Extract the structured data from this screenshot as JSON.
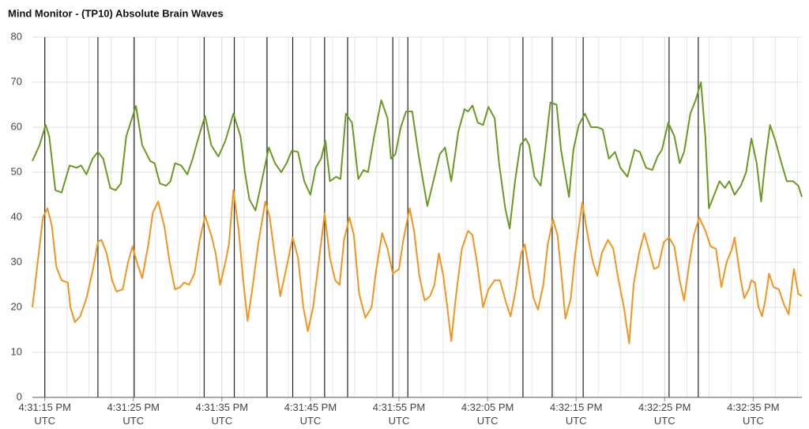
{
  "chart_data": {
    "type": "line",
    "title": "Mind Monitor - (TP10) Absolute Brain Waves",
    "xlim": [
      59473.6,
      59560.5
    ],
    "ylim": [
      0,
      80
    ],
    "yticks": [
      0,
      10,
      20,
      30,
      40,
      50,
      60,
      70,
      80
    ],
    "xticks": [
      {
        "value": 59475,
        "label": "4:31:15 PM UTC"
      },
      {
        "value": 59485,
        "label": "4:31:25 PM UTC"
      },
      {
        "value": 59495,
        "label": "4:31:35 PM UTC"
      },
      {
        "value": 59505,
        "label": "4:31:45 PM UTC"
      },
      {
        "value": 59515,
        "label": "4:31:55 PM UTC"
      },
      {
        "value": 59525,
        "label": "4:32:05 PM UTC"
      },
      {
        "value": 59535,
        "label": "4:32:15 PM UTC"
      },
      {
        "value": 59545,
        "label": "4:32:25 PM UTC"
      },
      {
        "value": 59555,
        "label": "4:32:35 PM UTC"
      }
    ],
    "xminorticks": [
      59477.5,
      59480,
      59482.5,
      59487.5,
      59490,
      59492.5,
      59497.5,
      59500,
      59502.5,
      59507.5,
      59510,
      59512.5,
      59517.5,
      59520,
      59522.5,
      59527.5,
      59530,
      59532.5,
      59537.5,
      59540,
      59542.5,
      59547.5,
      59550,
      59552.5,
      59557.5,
      59560
    ],
    "grid": true,
    "markers": [
      59475.0,
      59481.0,
      59485.1,
      59493.0,
      59496.4,
      59500.1,
      59503.0,
      59506.6,
      59509.2,
      59514.3,
      59516.0,
      59529.0,
      59532.3,
      59535.8,
      59545.5,
      59548.8
    ],
    "series": [
      {
        "color": "#6a9a23",
        "x": [
          59473.6,
          59474.4,
          59475.1,
          59475.5,
          59476.2,
          59476.9,
          59477.8,
          59478.6,
          59479.1,
          59479.7,
          59480.4,
          59481.0,
          59481.6,
          59482.4,
          59483.0,
          59483.6,
          59484.2,
          59485.3,
          59486.0,
          59486.9,
          59487.4,
          59488.0,
          59488.7,
          59489.2,
          59489.7,
          59490.4,
          59491.1,
          59491.7,
          59492.4,
          59493.1,
          59493.8,
          59494.6,
          59495.4,
          59496.3,
          59497.1,
          59497.6,
          59498.1,
          59498.8,
          59499.5,
          59500.3,
          59501.0,
          59501.7,
          59502.3,
          59502.9,
          59503.6,
          59504.3,
          59505.0,
          59505.6,
          59506.2,
          59506.7,
          59507.2,
          59507.9,
          59508.4,
          59509.0,
          59509.7,
          59510.4,
          59511.0,
          59511.5,
          59512.2,
          59513.0,
          59513.7,
          59514.1,
          59514.6,
          59515.2,
          59515.8,
          59516.5,
          59517.2,
          59518.2,
          59519.0,
          59519.6,
          59520.2,
          59520.9,
          59521.7,
          59522.4,
          59522.8,
          59523.3,
          59523.9,
          59524.5,
          59525.1,
          59525.8,
          59526.3,
          59527.0,
          59527.5,
          59528.1,
          59528.7,
          59529.3,
          59529.7,
          59530.3,
          59531.0,
          59531.5,
          59532.1,
          59532.8,
          59533.3,
          59534.2,
          59534.7,
          59535.3,
          59536.0,
          59536.7,
          59537.4,
          59538.0,
          59538.7,
          59539.4,
          59540.0,
          59540.8,
          59541.6,
          59542.2,
          59542.9,
          59543.6,
          59544.2,
          59544.7,
          59545.4,
          59546.1,
          59546.7,
          59547.2,
          59547.9,
          59548.5,
          59549.1,
          59549.6,
          59550.0,
          59550.6,
          59551.2,
          59551.8,
          59552.3,
          59552.9,
          59553.6,
          59554.2,
          59554.8,
          59555.4,
          59555.9,
          59556.4,
          59556.9,
          59557.5,
          59558.2,
          59558.8,
          59559.5,
          59560.1,
          59560.5
        ],
        "values": [
          52.5,
          56,
          60.5,
          58,
          46,
          45.5,
          51.5,
          51,
          51.5,
          49.5,
          53,
          54.5,
          53,
          46.5,
          46,
          47.5,
          58,
          64.7,
          56,
          52.5,
          52,
          47.5,
          47,
          48,
          52,
          51.5,
          49.5,
          53,
          58,
          62.5,
          56,
          53.5,
          57,
          63,
          58,
          50,
          44,
          41.5,
          48,
          55.5,
          52,
          50,
          52,
          54.8,
          54.5,
          48,
          45,
          51,
          53,
          57,
          48,
          49,
          48.5,
          63,
          61,
          48.5,
          50.5,
          50,
          58,
          66,
          62,
          53,
          54,
          60,
          63.5,
          63.5,
          54,
          42.5,
          49,
          54,
          55.5,
          48,
          59,
          64,
          63.5,
          64.8,
          61,
          60.5,
          64.5,
          62,
          52,
          42,
          37.5,
          48,
          56,
          57.5,
          56,
          49,
          47,
          55,
          65.5,
          65,
          55,
          44.5,
          55,
          60.5,
          63,
          60,
          60,
          59.5,
          53,
          54.5,
          51,
          49,
          55,
          54.5,
          51,
          50.5,
          53.5,
          55,
          61,
          58,
          52,
          54.5,
          63,
          66,
          70,
          58,
          42,
          45,
          48,
          46.5,
          48,
          45,
          47,
          50,
          57.5,
          52,
          43.5,
          53,
          60.5,
          57,
          52,
          48,
          48,
          47,
          44.5
        ]
      },
      {
        "color": "#f0961e",
        "x": [
          59473.6,
          59474.2,
          59474.8,
          59475.3,
          59475.8,
          59476.3,
          59476.9,
          59477.6,
          59477.9,
          59478.4,
          59479.0,
          59479.7,
          59480.4,
          59481.0,
          59481.4,
          59482.0,
          59482.6,
          59483.1,
          59483.8,
          59484.4,
          59484.9,
          59485.4,
          59486.0,
          59486.7,
          59487.2,
          59487.8,
          59488.5,
          59489.1,
          59489.7,
          59490.3,
          59490.7,
          59491.3,
          59491.9,
          59492.5,
          59493.1,
          59493.8,
          59494.3,
          59494.8,
          59495.4,
          59495.8,
          59496.3,
          59496.9,
          59497.4,
          59497.9,
          59498.5,
          59499.1,
          59499.9,
          59500.4,
          59501.0,
          59501.6,
          59502.2,
          59503.0,
          59503.6,
          59504.2,
          59504.7,
          59505.3,
          59506.0,
          59506.6,
          59507.2,
          59507.8,
          59508.3,
          59508.8,
          59509.4,
          59509.9,
          59510.5,
          59511.2,
          59511.9,
          59512.4,
          59513.1,
          59513.7,
          59514.3,
          59515.0,
          59515.5,
          59516.2,
          59516.7,
          59517.3,
          59517.9,
          59518.5,
          59519.0,
          59519.5,
          59520.0,
          59520.4,
          59520.9,
          59521.4,
          59522.1,
          59522.8,
          59523.3,
          59523.8,
          59524.5,
          59525.1,
          59525.8,
          59526.4,
          59527.1,
          59527.6,
          59528.1,
          59528.8,
          59529.2,
          59529.7,
          59530.2,
          59530.7,
          59531.3,
          59531.8,
          59532.4,
          59532.9,
          59533.4,
          59533.8,
          59534.4,
          59534.9,
          59535.7,
          59536.3,
          59536.9,
          59537.4,
          59537.9,
          59538.6,
          59539.2,
          59539.7,
          59540.4,
          59541.0,
          59541.5,
          59542.1,
          59542.7,
          59543.2,
          59543.8,
          59544.3,
          59544.9,
          59545.5,
          59546.1,
          59546.7,
          59547.2,
          59547.8,
          59548.3,
          59548.9,
          59549.6,
          59550.2,
          59550.8,
          59551.4,
          59552.0,
          59552.6,
          59552.9,
          59553.6,
          59554.0,
          59554.5,
          59554.8,
          59555.2,
          59555.6,
          59556.0,
          59556.4,
          59556.8,
          59557.3,
          59557.9,
          59558.5,
          59559.0,
          59559.6,
          59560.1,
          59560.5
        ],
        "values": [
          20,
          30,
          40,
          42,
          38,
          29,
          26,
          25.5,
          20,
          16.7,
          18,
          22,
          28,
          34.5,
          35,
          32,
          26,
          23.5,
          24,
          30,
          33.5,
          30,
          26.5,
          34,
          41,
          43.5,
          38,
          30,
          24,
          24.5,
          25.5,
          25,
          27.5,
          35,
          40.3,
          36,
          32,
          25,
          30,
          34,
          46,
          37,
          26,
          17,
          25,
          34,
          43.5,
          40,
          31,
          22.5,
          28,
          35.5,
          31,
          20,
          14.7,
          20,
          31,
          40.8,
          31,
          26,
          25,
          35,
          40,
          36,
          23,
          17.7,
          20,
          28,
          36.5,
          33,
          27.5,
          28.5,
          35,
          42,
          37,
          27,
          21.5,
          22.5,
          25,
          32,
          27,
          21,
          12.5,
          22,
          33,
          37,
          36,
          30,
          20,
          24,
          26,
          26,
          21,
          18,
          23,
          32,
          34,
          28,
          22,
          19.5,
          25,
          34,
          39.5,
          36,
          26,
          17.5,
          22,
          32,
          43.3,
          36,
          30,
          27,
          32,
          35,
          33,
          27,
          20,
          12,
          25,
          32,
          36.5,
          33,
          28.5,
          29,
          34.5,
          35.5,
          33.5,
          26,
          21.5,
          30,
          36,
          40,
          37,
          33.5,
          33,
          24.5,
          30,
          33,
          35.5,
          26,
          22,
          24,
          26,
          25.5,
          20,
          18,
          22,
          27.5,
          24.5,
          24,
          20.5,
          18.5,
          28.5,
          23,
          22.5
        ]
      }
    ]
  }
}
